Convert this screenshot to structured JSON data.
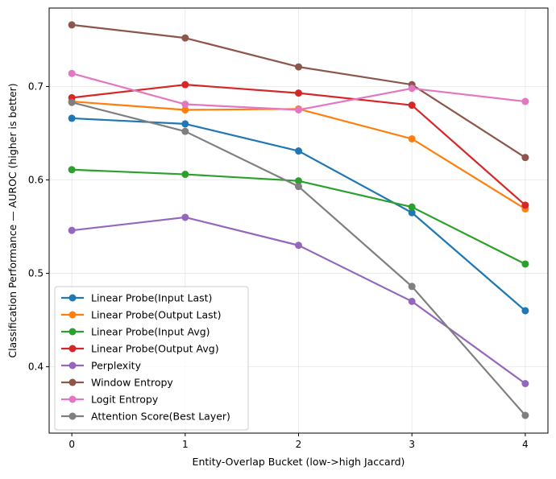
{
  "chart_data": {
    "type": "line",
    "title": "",
    "xlabel": "Entity-Overlap Bucket (low->high Jaccard)",
    "ylabel": "Classification Performance — AUROC (higher is better)",
    "x": [
      0,
      1,
      2,
      3,
      4
    ],
    "x_ticks": [
      "0",
      "1",
      "2",
      "3",
      "4"
    ],
    "y_ticks": [
      "0.4",
      "0.5",
      "0.6",
      "0.7"
    ],
    "xlim": [
      -0.2,
      4.2
    ],
    "ylim": [
      0.329,
      0.784
    ],
    "grid": true,
    "legend_position": "lower-left",
    "series": [
      {
        "name": "Linear Probe(Input Last)",
        "color": "#1f77b4",
        "values": [
          0.666,
          0.66,
          0.631,
          0.565,
          0.46
        ]
      },
      {
        "name": "Linear Probe(Output Last)",
        "color": "#ff7f0e",
        "values": [
          0.684,
          0.675,
          0.676,
          0.644,
          0.569
        ]
      },
      {
        "name": "Linear Probe(Input Avg)",
        "color": "#2ca02c",
        "values": [
          0.611,
          0.606,
          0.599,
          0.571,
          0.51
        ]
      },
      {
        "name": "Linear Probe(Output Avg)",
        "color": "#d62728",
        "values": [
          0.688,
          0.702,
          0.693,
          0.68,
          0.573
        ]
      },
      {
        "name": "Perplexity",
        "color": "#9467bd",
        "values": [
          0.546,
          0.56,
          0.53,
          0.47,
          0.382
        ]
      },
      {
        "name": "Window Entropy",
        "color": "#8c564b",
        "values": [
          0.766,
          0.752,
          0.721,
          0.702,
          0.624
        ]
      },
      {
        "name": "Logit Entropy",
        "color": "#e377c2",
        "values": [
          0.714,
          0.681,
          0.675,
          0.698,
          0.684
        ]
      },
      {
        "name": "Attention Score(Best Layer)",
        "color": "#7f7f7f",
        "values": [
          0.683,
          0.652,
          0.593,
          0.486,
          0.348
        ]
      }
    ]
  }
}
